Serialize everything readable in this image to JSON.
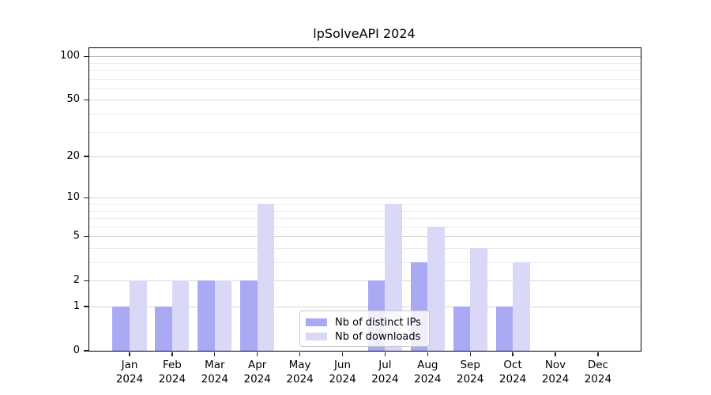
{
  "chart_data": {
    "type": "bar",
    "title": "lpSolveAPI 2024",
    "categories": [
      "Jan",
      "Feb",
      "Mar",
      "Apr",
      "May",
      "Jun",
      "Jul",
      "Aug",
      "Sep",
      "Oct",
      "Nov",
      "Dec"
    ],
    "x_label_line2": "2024",
    "series": [
      {
        "name": "Nb of distinct IPs",
        "color": "#aaaaf4",
        "values": [
          1,
          1,
          2,
          2,
          0,
          0,
          2,
          3,
          1,
          1,
          0,
          0
        ]
      },
      {
        "name": "Nb of downloads",
        "color": "#d9d9f7",
        "values": [
          2,
          2,
          2,
          9,
          0,
          0,
          9,
          6,
          4,
          3,
          0,
          0
        ]
      }
    ],
    "xlabel": "",
    "ylabel": "",
    "y_scale": "log1p",
    "y_ticks": [
      0,
      1,
      2,
      5,
      10,
      20,
      50,
      100
    ],
    "y_minor_gridlines": [
      3,
      4,
      6,
      7,
      8,
      9,
      30,
      40,
      60,
      70,
      80,
      90
    ],
    "ylim": [
      0,
      114
    ],
    "grid": "horizontal",
    "legend_position": "bottom-center"
  }
}
